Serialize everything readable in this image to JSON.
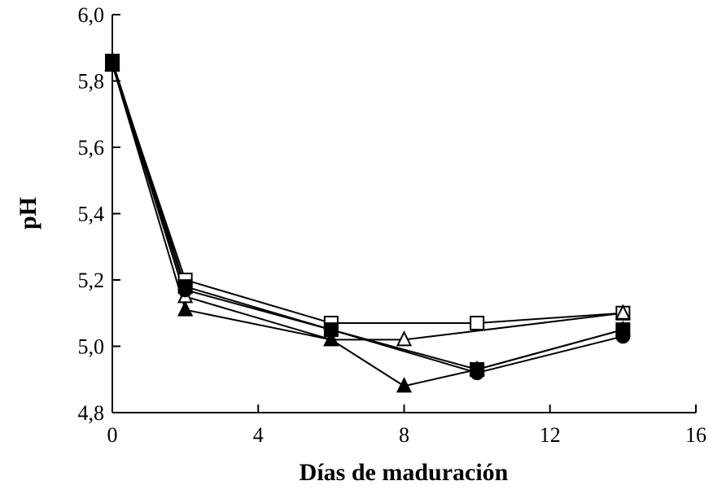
{
  "chart_data": {
    "type": "line",
    "xlabel": "Días de maduración",
    "ylabel": "pH",
    "xlim": [
      0,
      16
    ],
    "ylim": [
      4.8,
      6.0
    ],
    "xticks": [
      0,
      4,
      8,
      12,
      16
    ],
    "yticks": [
      {
        "value": 4.8,
        "label": "4,8"
      },
      {
        "value": 5.0,
        "label": "5,0"
      },
      {
        "value": 5.2,
        "label": "5,2"
      },
      {
        "value": 5.4,
        "label": "5,4"
      },
      {
        "value": 5.6,
        "label": "5,6"
      },
      {
        "value": 5.8,
        "label": "5,8"
      },
      {
        "value": 6.0,
        "label": "6,0"
      }
    ],
    "series": [
      {
        "marker": "square-open",
        "color": "#000000",
        "x": [
          0,
          2,
          6,
          10,
          14
        ],
        "values": [
          5.85,
          5.2,
          5.07,
          5.07,
          5.1
        ]
      },
      {
        "marker": "triangle-open",
        "color": "#000000",
        "x": [
          0,
          2,
          6,
          8,
          14
        ],
        "values": [
          5.85,
          5.15,
          5.02,
          5.02,
          5.1
        ]
      },
      {
        "marker": "square-filled",
        "color": "#000000",
        "x": [
          0,
          2,
          6,
          10,
          14
        ],
        "values": [
          5.86,
          5.18,
          5.05,
          4.93,
          5.05
        ]
      },
      {
        "marker": "circle-filled",
        "color": "#000000",
        "x": [
          0,
          2,
          6,
          10,
          14
        ],
        "values": [
          5.85,
          5.17,
          5.05,
          4.92,
          5.03
        ]
      },
      {
        "marker": "triangle-filled",
        "color": "#000000",
        "x": [
          0,
          2,
          6,
          8,
          10,
          14
        ],
        "values": [
          5.85,
          5.11,
          5.02,
          4.88,
          4.93,
          5.05
        ]
      }
    ]
  }
}
